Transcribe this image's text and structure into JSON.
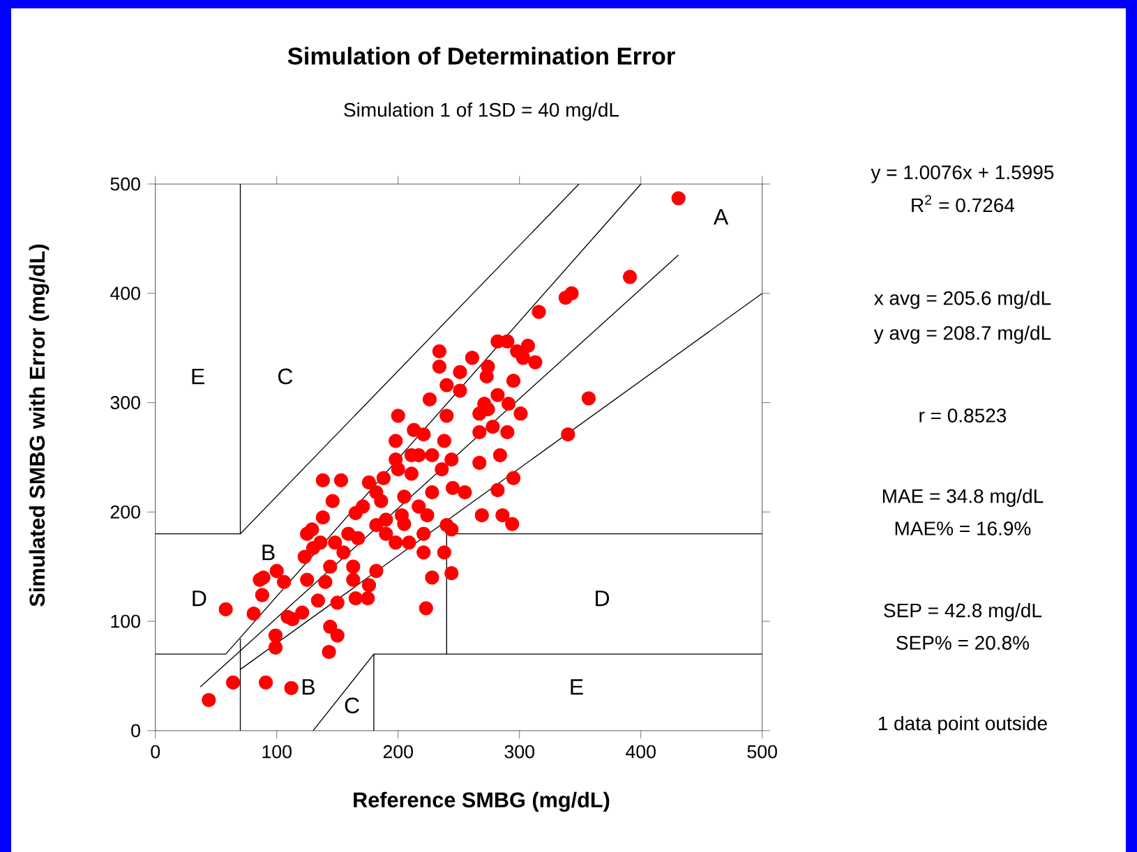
{
  "chart_data": {
    "type": "scatter",
    "title": "Simulation of Determination Error",
    "subtitle": "Simulation 1 of 1SD = 40 mg/dL",
    "xlabel": "Reference SMBG (mg/dL)",
    "ylabel": "Simulated SMBG with Error (mg/dL)",
    "xlim": [
      0,
      500
    ],
    "ylim": [
      0,
      500
    ],
    "xticks": [
      0,
      100,
      200,
      300,
      400,
      500
    ],
    "yticks": [
      0,
      100,
      200,
      300,
      400,
      500
    ],
    "series": [
      {
        "color": "#ff0000",
        "marker": "circle",
        "x": [
          431,
          44,
          64,
          91,
          112,
          58,
          81,
          88,
          89,
          100,
          106,
          99,
          99,
          113,
          121,
          125,
          130,
          125,
          138,
          138,
          153,
          146,
          136,
          148,
          159,
          144,
          140,
          134,
          150,
          144,
          150,
          143,
          165,
          167,
          163,
          163,
          165,
          175,
          176,
          182,
          176,
          188,
          186,
          200,
          198,
          190,
          198,
          203,
          211,
          221,
          211,
          217,
          209,
          221,
          223,
          228,
          238,
          244,
          244,
          228,
          236,
          238,
          244,
          240,
          226,
          234,
          234,
          240,
          251,
          251,
          261,
          245,
          255,
          267,
          269,
          273,
          267,
          274,
          282,
          290,
          282,
          278,
          284,
          282,
          286,
          294,
          295,
          290,
          291,
          295,
          301,
          303,
          307,
          313,
          316,
          338,
          343,
          391,
          357,
          340,
          198,
          205,
          221,
          224,
          190,
          205,
          217,
          171,
          182,
          155,
          129,
          123,
          86,
          109,
          271,
          298,
          274,
          267,
          182,
          200,
          213,
          228,
          240
        ],
        "values": [
          487,
          28,
          44,
          44,
          39,
          111,
          107,
          124,
          140,
          146,
          136,
          87,
          76,
          102,
          108,
          138,
          167,
          180,
          195,
          229,
          229,
          210,
          172,
          172,
          180,
          150,
          136,
          119,
          117,
          95,
          87,
          72,
          199,
          176,
          150,
          138,
          121,
          121,
          133,
          146,
          227,
          231,
          210,
          288,
          265,
          193,
          172,
          197,
          235,
          271,
          252,
          205,
          172,
          163,
          112,
          140,
          163,
          184,
          144,
          218,
          239,
          265,
          248,
          288,
          303,
          347,
          333,
          316,
          328,
          311,
          341,
          222,
          218,
          245,
          197,
          324,
          273,
          294,
          356,
          356,
          307,
          278,
          252,
          220,
          197,
          189,
          231,
          273,
          299,
          320,
          290,
          341,
          352,
          337,
          383,
          396,
          400,
          415,
          304,
          271,
          248,
          214,
          180,
          197,
          180,
          189,
          252,
          205,
          218,
          163,
          184,
          159,
          138,
          104,
          299,
          347,
          333,
          290,
          188,
          239,
          275,
          252,
          188
        ]
      },
      {
        "type": "line",
        "color": "#000000",
        "x": [
          37,
          431
        ],
        "values": [
          40,
          435
        ]
      },
      {
        "type": "line",
        "color": "#000000",
        "x": [
          70,
          70,
          0
        ],
        "values": [
          500,
          180,
          180
        ]
      },
      {
        "type": "line",
        "color": "#000000",
        "x": [
          70,
          349
        ],
        "values": [
          180,
          500
        ]
      },
      {
        "type": "line",
        "color": "#000000",
        "x": [
          0,
          58,
          400
        ],
        "values": [
          70,
          70,
          500
        ]
      },
      {
        "type": "line",
        "color": "#000000",
        "x": [
          70,
          500
        ],
        "values": [
          56,
          400
        ]
      },
      {
        "type": "line",
        "color": "#000000",
        "x": [
          70,
          70
        ],
        "values": [
          0,
          84
        ]
      },
      {
        "type": "line",
        "color": "#000000",
        "x": [
          130,
          180,
          180
        ],
        "values": [
          0,
          70,
          0
        ]
      },
      {
        "type": "line",
        "color": "#000000",
        "x": [
          180,
          500
        ],
        "values": [
          70,
          70
        ]
      },
      {
        "type": "line",
        "color": "#000000",
        "x": [
          240,
          240,
          500
        ],
        "values": [
          70,
          180,
          180
        ]
      }
    ],
    "annotations": [
      "A",
      "E",
      "C",
      "B",
      "D",
      "D",
      "E",
      "B",
      "C",
      "y = 1.0076x + 1.5995",
      "R$^{2}$ = 0.7264",
      "x avg = 205.6 mg/dL",
      "y avg = 208.7 mg/dL",
      "r = 0.8523",
      "MAE = 34.8 mg/dL",
      "MAE% = 16.9%",
      "SEP = 42.8 mg/dL",
      "SEP% = 20.8%",
      "1 data point outside"
    ]
  }
}
